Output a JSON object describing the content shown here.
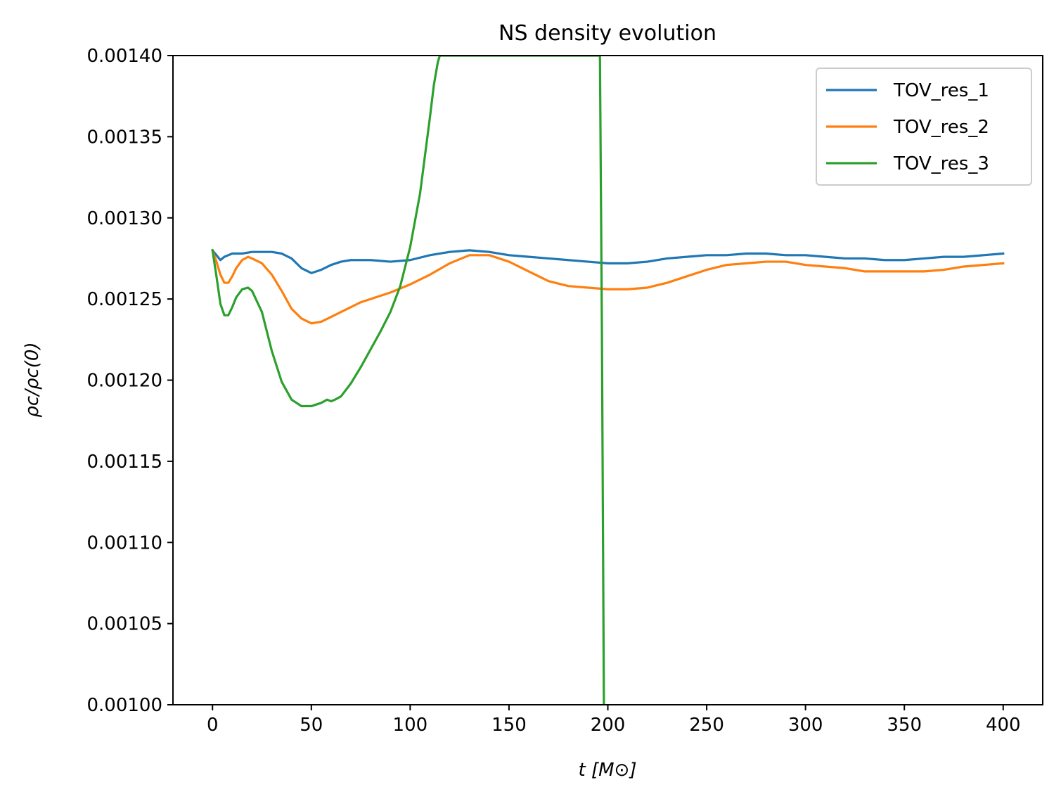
{
  "chart_data": {
    "type": "line",
    "title": "NS density evolution",
    "xlabel": "t [M⊙]",
    "ylabel": "ρc/ρc(0)",
    "xlim": [
      -20,
      420
    ],
    "ylim": [
      0.001,
      0.0014
    ],
    "xticks": [
      0,
      50,
      100,
      150,
      200,
      250,
      300,
      350,
      400
    ],
    "yticks": [
      0.001,
      0.00105,
      0.0011,
      0.00115,
      0.0012,
      0.00125,
      0.0013,
      0.00135,
      0.0014
    ],
    "xtick_labels": [
      "0",
      "50",
      "100",
      "150",
      "200",
      "250",
      "300",
      "350",
      "400"
    ],
    "ytick_labels": [
      "0.00100",
      "0.00105",
      "0.00110",
      "0.00115",
      "0.00120",
      "0.00125",
      "0.00130",
      "0.00135",
      "0.00140"
    ],
    "grid": false,
    "legend_position": "top-right",
    "series": [
      {
        "name": "TOV_res_1",
        "color": "#1f77b4",
        "x": [
          0,
          2,
          4,
          6,
          8,
          10,
          15,
          20,
          25,
          30,
          35,
          40,
          45,
          50,
          55,
          60,
          65,
          70,
          75,
          80,
          90,
          100,
          110,
          120,
          130,
          140,
          150,
          160,
          170,
          180,
          190,
          200,
          210,
          220,
          230,
          240,
          250,
          260,
          270,
          280,
          290,
          300,
          310,
          320,
          330,
          340,
          350,
          360,
          370,
          380,
          390,
          400
        ],
        "y": [
          0.00128,
          0.001277,
          0.001274,
          0.001276,
          0.001277,
          0.001278,
          0.001278,
          0.001279,
          0.001279,
          0.001279,
          0.001278,
          0.001275,
          0.001269,
          0.001266,
          0.001268,
          0.001271,
          0.001273,
          0.001274,
          0.001274,
          0.001274,
          0.001273,
          0.001274,
          0.001277,
          0.001279,
          0.00128,
          0.001279,
          0.001277,
          0.001276,
          0.001275,
          0.001274,
          0.001273,
          0.001272,
          0.001272,
          0.001273,
          0.001275,
          0.001276,
          0.001277,
          0.001277,
          0.001278,
          0.001278,
          0.001277,
          0.001277,
          0.001276,
          0.001275,
          0.001275,
          0.001274,
          0.001274,
          0.001275,
          0.001276,
          0.001276,
          0.001277,
          0.001278
        ]
      },
      {
        "name": "TOV_res_2",
        "color": "#ff7f0e",
        "x": [
          0,
          2,
          4,
          6,
          8,
          10,
          12,
          15,
          18,
          20,
          25,
          30,
          35,
          40,
          45,
          50,
          55,
          60,
          65,
          70,
          75,
          80,
          90,
          100,
          110,
          120,
          130,
          140,
          150,
          160,
          170,
          180,
          190,
          200,
          210,
          220,
          230,
          240,
          250,
          260,
          270,
          280,
          290,
          300,
          310,
          320,
          330,
          340,
          350,
          360,
          370,
          380,
          390,
          400
        ],
        "y": [
          0.00128,
          0.001273,
          0.001265,
          0.00126,
          0.00126,
          0.001264,
          0.001269,
          0.001274,
          0.001276,
          0.001275,
          0.001272,
          0.001265,
          0.001255,
          0.001244,
          0.001238,
          0.001235,
          0.001236,
          0.001239,
          0.001242,
          0.001245,
          0.001248,
          0.00125,
          0.001254,
          0.001259,
          0.001265,
          0.001272,
          0.001277,
          0.001277,
          0.001273,
          0.001267,
          0.001261,
          0.001258,
          0.001257,
          0.001256,
          0.001256,
          0.001257,
          0.00126,
          0.001264,
          0.001268,
          0.001271,
          0.001272,
          0.001273,
          0.001273,
          0.001271,
          0.00127,
          0.001269,
          0.001267,
          0.001267,
          0.001267,
          0.001267,
          0.001268,
          0.00127,
          0.001271,
          0.001272
        ]
      },
      {
        "name": "TOV_res_3",
        "color": "#2ca02c",
        "x": [
          0,
          2,
          4,
          6,
          8,
          10,
          12,
          15,
          18,
          20,
          25,
          30,
          35,
          40,
          45,
          50,
          55,
          58,
          60,
          62,
          65,
          70,
          75,
          80,
          85,
          90,
          95,
          100,
          105,
          110,
          112,
          114,
          115,
          196,
          197,
          198
        ],
        "y": [
          0.00128,
          0.001264,
          0.001247,
          0.00124,
          0.00124,
          0.001245,
          0.001251,
          0.001256,
          0.001257,
          0.001255,
          0.001242,
          0.001218,
          0.001199,
          0.001188,
          0.001184,
          0.001184,
          0.001186,
          0.001188,
          0.001187,
          0.001188,
          0.00119,
          0.001198,
          0.001208,
          0.001219,
          0.00123,
          0.001242,
          0.001258,
          0.001282,
          0.001315,
          0.001362,
          0.001382,
          0.001396,
          0.0014,
          0.0014,
          0.00123,
          0.001
        ]
      }
    ]
  }
}
